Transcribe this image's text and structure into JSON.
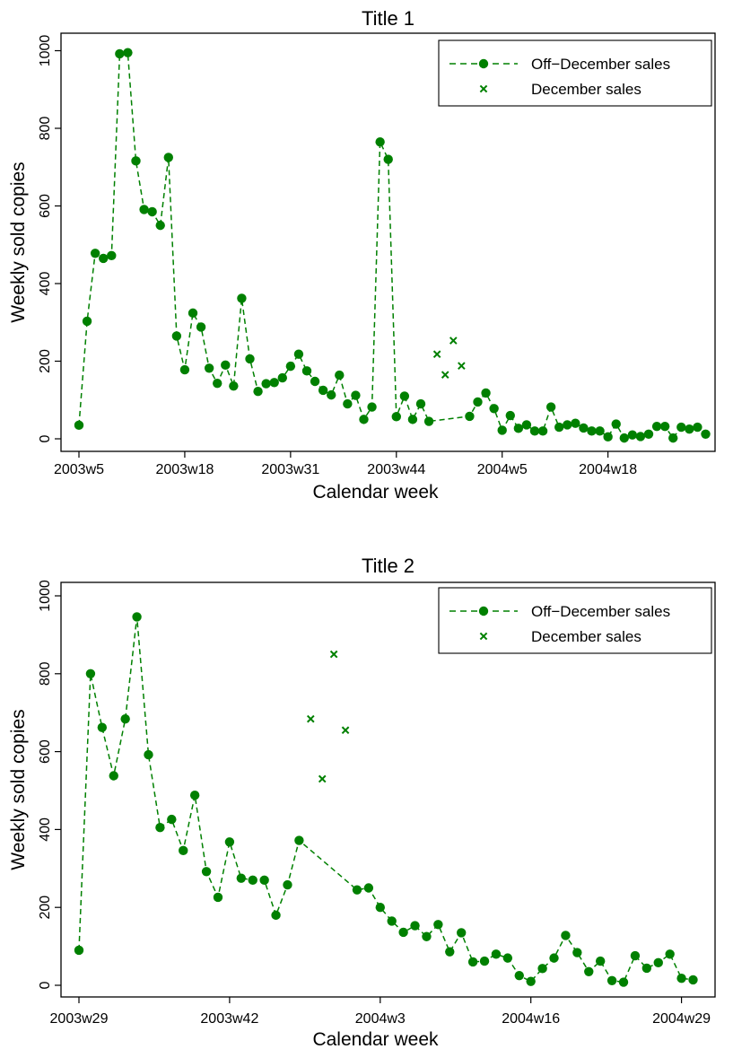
{
  "colors": {
    "series": "#008000",
    "axis": "#000000",
    "background": "#ffffff"
  },
  "legend": {
    "off_december": "Off−December sales",
    "december": "December sales"
  },
  "chart_data": [
    {
      "type": "scatter",
      "title": "Title 1",
      "xlabel": "Calendar week",
      "ylabel": "Weekly sold copies",
      "ylim": [
        0,
        1000
      ],
      "y_ticks": [
        0,
        200,
        400,
        600,
        800,
        1000
      ],
      "x_ticks": [
        {
          "label": "2003w5",
          "week": 0
        },
        {
          "label": "2003w18",
          "week": 13
        },
        {
          "label": "2003w31",
          "week": 26
        },
        {
          "label": "2003w44",
          "week": 39
        },
        {
          "label": "2004w5",
          "week": 52
        },
        {
          "label": "2004w18",
          "week": 65
        }
      ],
      "xlim": [
        -0.5,
        77.5
      ],
      "legend_position": "top-right",
      "series": [
        {
          "name": "Off−December sales",
          "style": "dashed-line-with-dots",
          "points": [
            [
              0,
              35
            ],
            [
              1,
              303
            ],
            [
              2,
              478
            ],
            [
              3,
              465
            ],
            [
              4,
              472
            ],
            [
              5,
              992
            ],
            [
              6,
              995
            ],
            [
              7,
              716
            ],
            [
              8,
              591
            ],
            [
              9,
              585
            ],
            [
              10,
              550
            ],
            [
              11,
              725
            ],
            [
              12,
              265
            ],
            [
              13,
              178
            ],
            [
              14,
              324
            ],
            [
              15,
              288
            ],
            [
              16,
              182
            ],
            [
              17,
              143
            ],
            [
              18,
              190
            ],
            [
              19,
              136
            ],
            [
              20,
              362
            ],
            [
              21,
              206
            ],
            [
              22,
              122
            ],
            [
              23,
              142
            ],
            [
              24,
              145
            ],
            [
              25,
              157
            ],
            [
              26,
              187
            ],
            [
              27,
              218
            ],
            [
              28,
              175
            ],
            [
              29,
              148
            ],
            [
              30,
              125
            ],
            [
              31,
              113
            ],
            [
              32,
              164
            ],
            [
              33,
              90
            ],
            [
              34,
              112
            ],
            [
              35,
              50
            ],
            [
              36,
              82
            ],
            [
              37,
              765
            ],
            [
              38,
              720
            ],
            [
              39,
              57
            ],
            [
              40,
              110
            ],
            [
              41,
              50
            ],
            [
              42,
              90
            ],
            [
              43,
              45
            ],
            [
              48,
              58
            ],
            [
              49,
              95
            ],
            [
              50,
              118
            ],
            [
              51,
              78
            ],
            [
              52,
              22
            ],
            [
              53,
              60
            ],
            [
              54,
              27
            ],
            [
              55,
              36
            ],
            [
              56,
              20
            ],
            [
              57,
              20
            ],
            [
              58,
              82
            ],
            [
              59,
              30
            ],
            [
              60,
              36
            ],
            [
              61,
              40
            ],
            [
              62,
              28
            ],
            [
              63,
              20
            ],
            [
              64,
              20
            ],
            [
              65,
              5
            ],
            [
              66,
              38
            ],
            [
              67,
              2
            ],
            [
              68,
              10
            ],
            [
              69,
              6
            ],
            [
              70,
              12
            ],
            [
              71,
              32
            ],
            [
              72,
              32
            ],
            [
              73,
              2
            ],
            [
              74,
              30
            ],
            [
              75,
              25
            ],
            [
              76,
              30
            ],
            [
              77,
              12
            ]
          ]
        },
        {
          "name": "December sales",
          "style": "x-markers",
          "points": [
            [
              44,
              218
            ],
            [
              45,
              165
            ],
            [
              46,
              253
            ],
            [
              47,
              188
            ]
          ]
        }
      ]
    },
    {
      "type": "scatter",
      "title": "Title 2",
      "xlabel": "Calendar week",
      "ylabel": "Weekly sold copies",
      "ylim": [
        0,
        1000
      ],
      "y_ticks": [
        0,
        200,
        400,
        600,
        800,
        1000
      ],
      "x_ticks": [
        {
          "label": "2003w29",
          "week": 0
        },
        {
          "label": "2003w42",
          "week": 13
        },
        {
          "label": "2004w3",
          "week": 26
        },
        {
          "label": "2004w16",
          "week": 39
        },
        {
          "label": "2004w29",
          "week": 52
        }
      ],
      "xlim": [
        -0.5,
        53.5
      ],
      "legend_position": "top-right",
      "series": [
        {
          "name": "Off−December sales",
          "style": "dashed-line-with-dots",
          "points": [
            [
              0,
              90
            ],
            [
              1,
              800
            ],
            [
              2,
              662
            ],
            [
              3,
              538
            ],
            [
              4,
              684
            ],
            [
              5,
              946
            ],
            [
              6,
              592
            ],
            [
              7,
              405
            ],
            [
              8,
              426
            ],
            [
              9,
              346
            ],
            [
              10,
              488
            ],
            [
              11,
              292
            ],
            [
              12,
              226
            ],
            [
              13,
              368
            ],
            [
              14,
              275
            ],
            [
              15,
              270
            ],
            [
              16,
              270
            ],
            [
              17,
              180
            ],
            [
              18,
              258
            ],
            [
              19,
              372
            ],
            [
              24,
              245
            ],
            [
              25,
              250
            ],
            [
              26,
              200
            ],
            [
              27,
              165
            ],
            [
              28,
              136
            ],
            [
              29,
              153
            ],
            [
              30,
              125
            ],
            [
              31,
              156
            ],
            [
              32,
              86
            ],
            [
              33,
              135
            ],
            [
              34,
              60
            ],
            [
              35,
              62
            ],
            [
              36,
              80
            ],
            [
              37,
              70
            ],
            [
              38,
              25
            ],
            [
              39,
              10
            ],
            [
              40,
              43
            ],
            [
              41,
              70
            ],
            [
              42,
              128
            ],
            [
              43,
              84
            ],
            [
              44,
              35
            ],
            [
              45,
              62
            ],
            [
              46,
              12
            ],
            [
              47,
              8
            ],
            [
              48,
              76
            ],
            [
              49,
              44
            ],
            [
              50,
              58
            ],
            [
              51,
              80
            ],
            [
              52,
              18
            ],
            [
              53,
              14
            ]
          ]
        },
        {
          "name": "December sales",
          "style": "x-markers",
          "points": [
            [
              20,
              684
            ],
            [
              21,
              530
            ],
            [
              22,
              850
            ],
            [
              23,
              655
            ]
          ]
        }
      ]
    }
  ]
}
